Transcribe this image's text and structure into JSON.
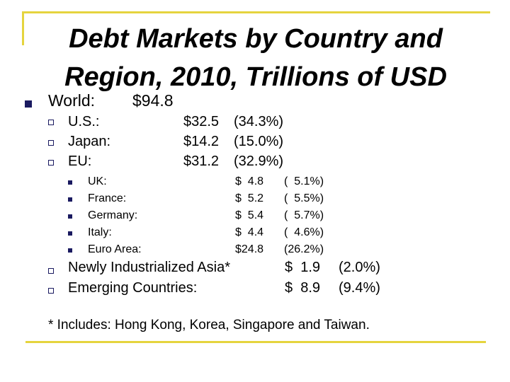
{
  "colors": {
    "frame": "#e5d43e",
    "bullet": "#1a1a60"
  },
  "title": "Debt Markets by Country and Region, 2010, Trillions of USD",
  "world": {
    "label": "World:",
    "value": "$94.8"
  },
  "regions": [
    {
      "label": "U.S.:",
      "value": "$32.5",
      "share": "(34.3%)"
    },
    {
      "label": "Japan:",
      "value": "$14.2",
      "share": "(15.0%)"
    },
    {
      "label": "EU:",
      "value": "$31.2",
      "share": "(32.9%)"
    }
  ],
  "eu_countries": [
    {
      "label": "UK:",
      "value": "$  4.8",
      "share": "(  5.1%)"
    },
    {
      "label": "France:",
      "value": "$  5.2",
      "share": "(  5.5%)"
    },
    {
      "label": "Germany:",
      "value": "$  5.4",
      "share": "(  5.7%)"
    },
    {
      "label": "Italy:",
      "value": "$  4.4",
      "share": "(  4.6%)"
    },
    {
      "label": "Euro Area:",
      "value": "$24.8",
      "share": "(26.2%)"
    }
  ],
  "other_regions": [
    {
      "label": "Newly Industrialized Asia*",
      "value": "$  1.9",
      "share": "(2.0%)"
    },
    {
      "label": "Emerging Countries:",
      "value": "$  8.9",
      "share": "(9.4%)"
    }
  ],
  "footnote": "* Includes: Hong Kong, Korea, Singapore and Taiwan.",
  "icons": {
    "level1": "filled-square-bullet",
    "level2": "hollow-square-bullet",
    "level3": "small-filled-square-bullet"
  }
}
